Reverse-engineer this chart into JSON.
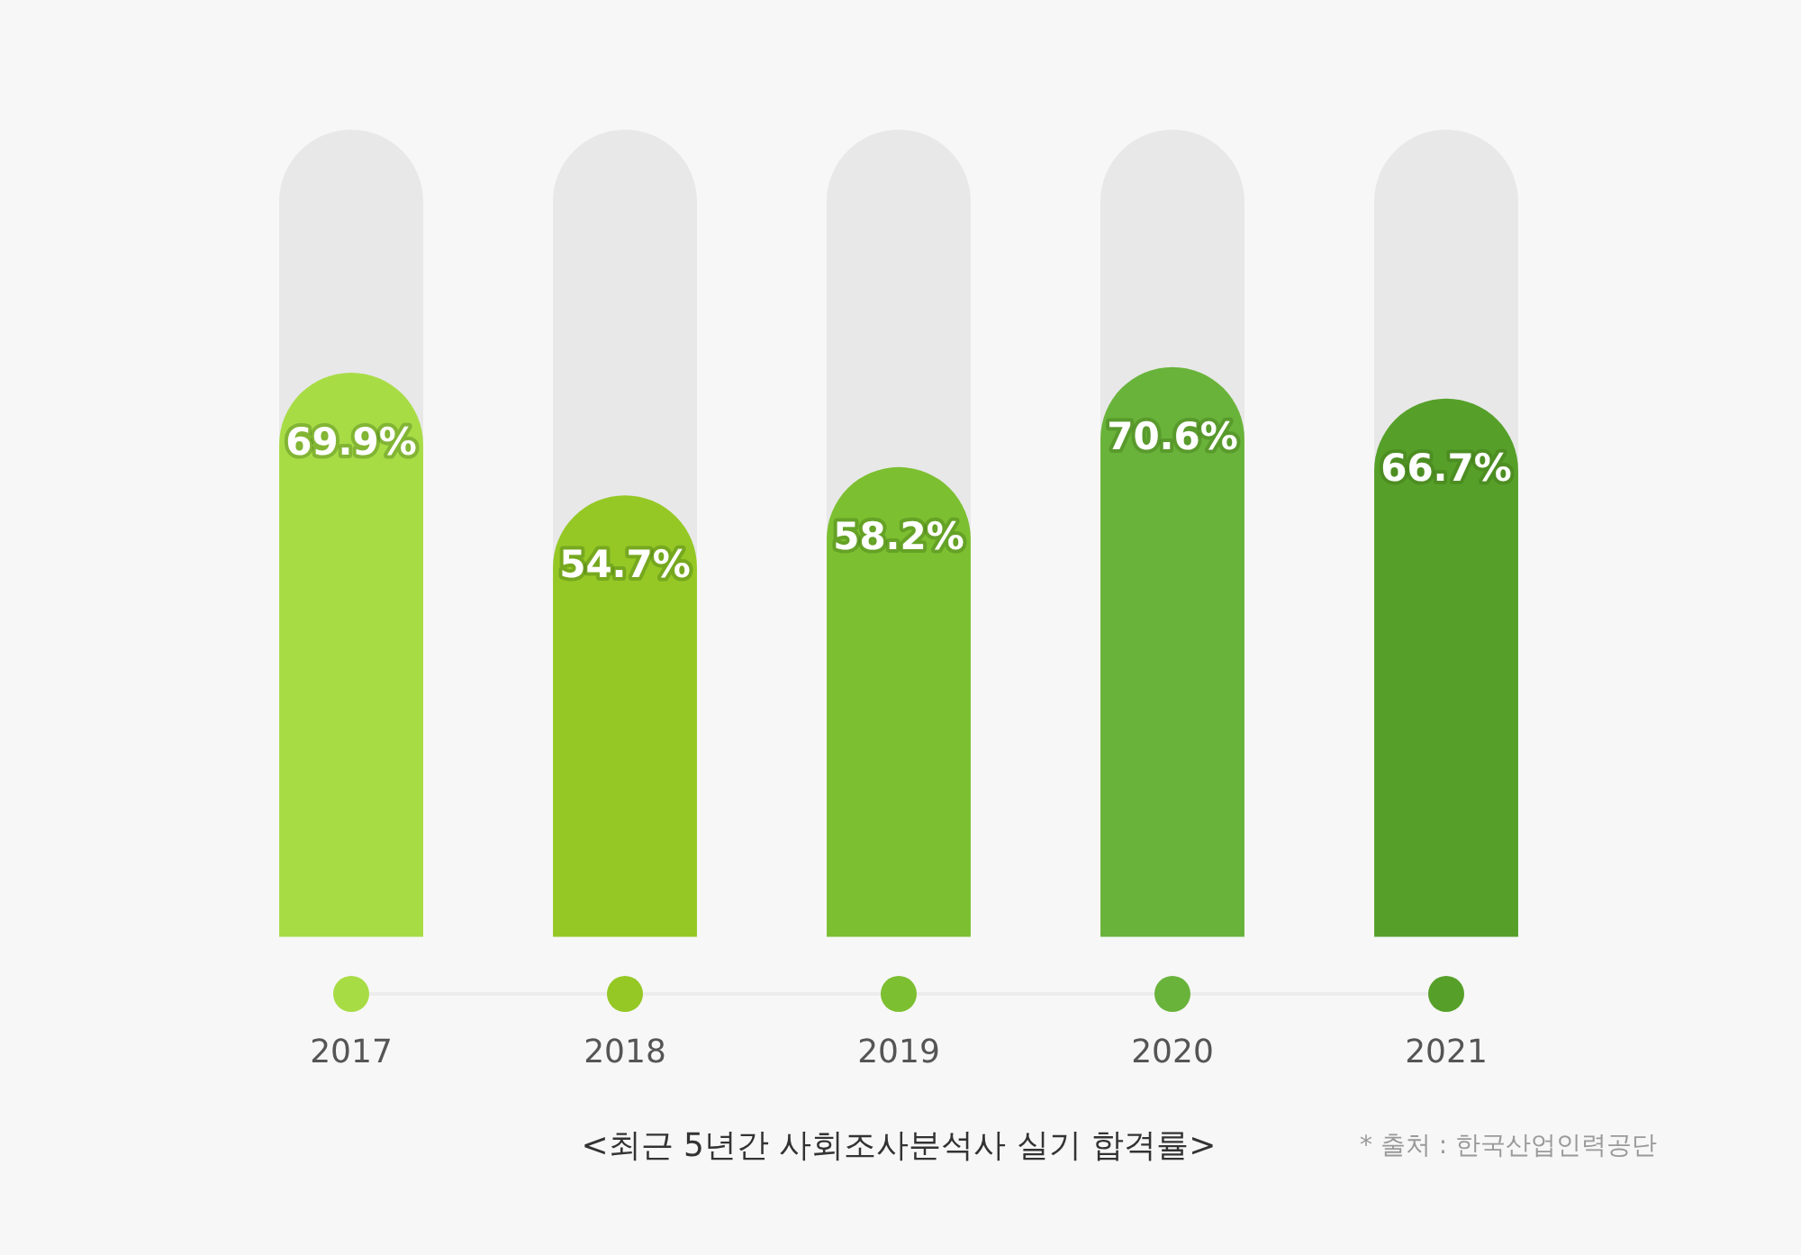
{
  "chart_data": {
    "type": "bar",
    "title": "<최근 5년간 사회조사분석사 실기 합격률>",
    "categories": [
      "2017",
      "2018",
      "2019",
      "2020",
      "2021"
    ],
    "values": [
      69.9,
      54.7,
      58.2,
      70.6,
      66.7
    ],
    "colors": [
      "#a8dc45",
      "#95c825",
      "#7cbf30",
      "#69b33a",
      "#56a02a"
    ],
    "value_labels": [
      "69.9%",
      "54.7%",
      "58.2%",
      "70.6%",
      "66.7%"
    ],
    "ylim": [
      0,
      100
    ],
    "tick_labels": "x",
    "grid": false,
    "legend": false,
    "annotations": [
      "* 출처 : 한국산업인력공단"
    ]
  }
}
